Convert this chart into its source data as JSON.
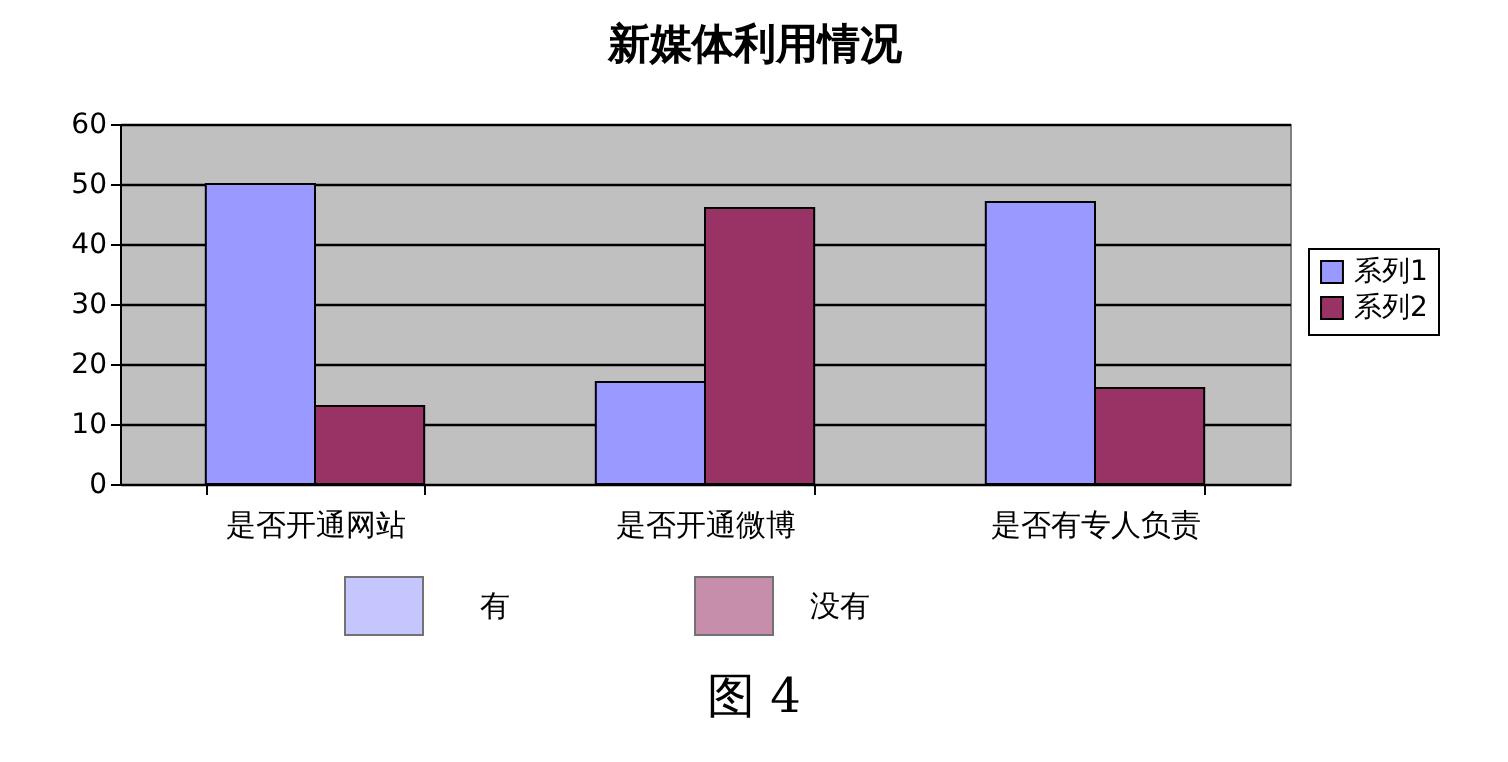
{
  "chart_data": {
    "type": "bar",
    "title": "新媒体利用情况",
    "categories": [
      "是否开通网站",
      "是否开通微博",
      "是否有专人负责"
    ],
    "series": [
      {
        "name": "系列1",
        "color": "#9999ff",
        "values": [
          50,
          17,
          47
        ]
      },
      {
        "name": "系列2",
        "color": "#993366",
        "values": [
          13,
          46,
          16
        ]
      }
    ],
    "ylim": [
      0,
      60
    ],
    "yticks": [
      0,
      10,
      20,
      30,
      40,
      50,
      60
    ],
    "grid": "y",
    "legend": "right",
    "annotations": [
      "有",
      "没有",
      "图 4"
    ]
  }
}
